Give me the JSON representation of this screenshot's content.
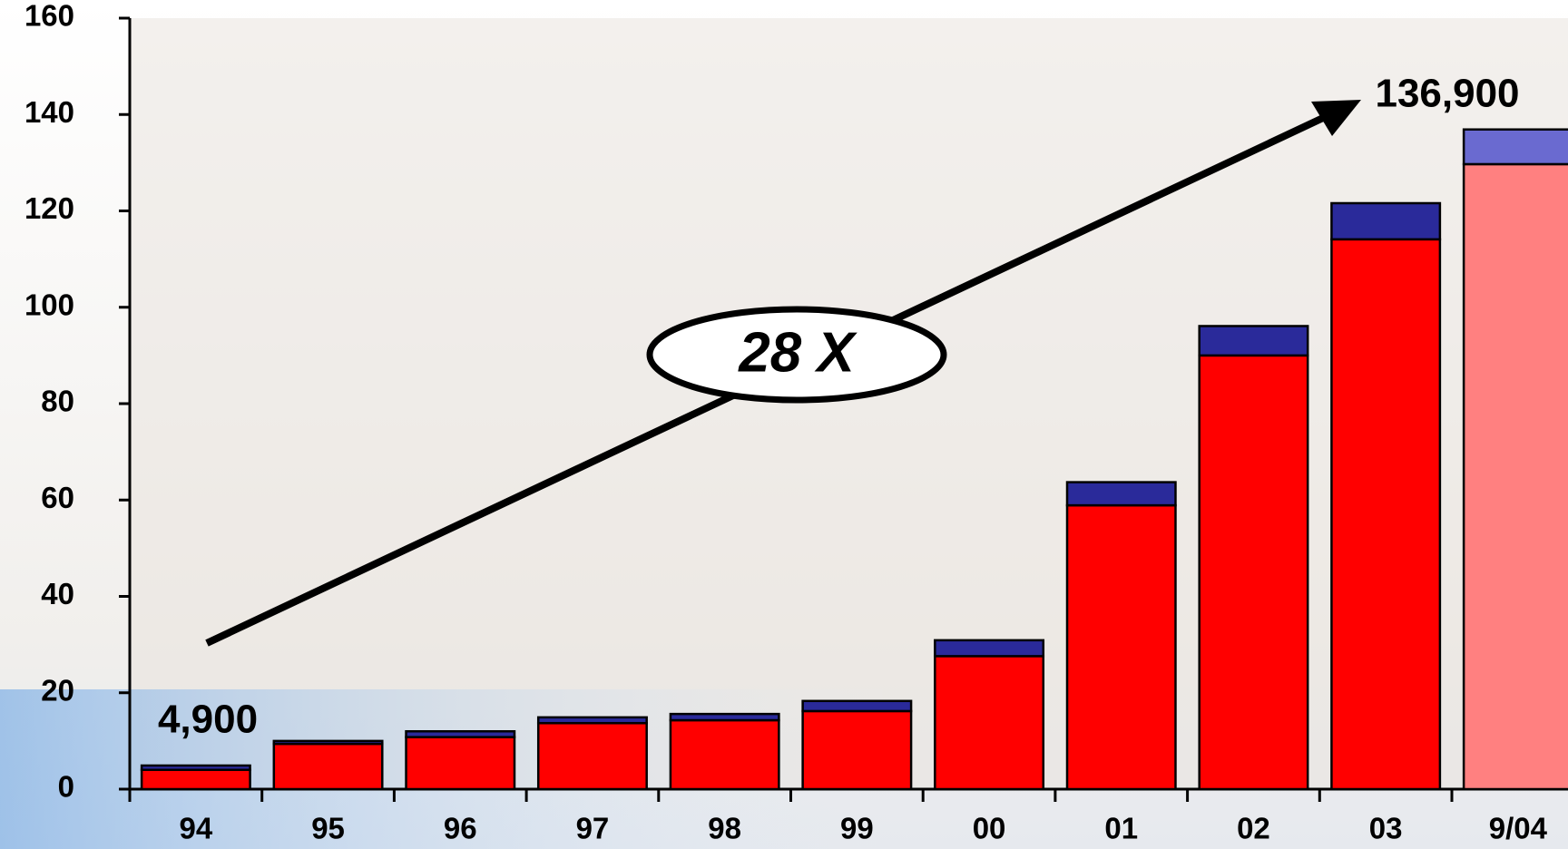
{
  "chart_data": {
    "type": "stacked_bar",
    "categories": [
      "94",
      "95",
      "96",
      "97",
      "98",
      "99",
      "00",
      "01",
      "02",
      "03",
      "9/04"
    ],
    "series": [
      {
        "color": "#ff0000",
        "colors": [
          "#ff0000",
          "#ff0000",
          "#ff0000",
          "#ff0000",
          "#ff0000",
          "#ff0000",
          "#ff0000",
          "#ff0000",
          "#ff0000",
          "#ff0000",
          "#ff8080"
        ],
        "values": [
          4.0,
          9.4,
          10.8,
          13.7,
          14.3,
          16.2,
          27.6,
          58.9,
          90.0,
          114.1,
          129.7
        ]
      },
      {
        "color": "#2a2a9a",
        "colors": [
          "#2a2a9a",
          "#2a2a9a",
          "#2a2a9a",
          "#2a2a9a",
          "#2a2a9a",
          "#2a2a9a",
          "#2a2a9a",
          "#2a2a9a",
          "#2a2a9a",
          "#2a2a9a",
          "#6a6ad0"
        ],
        "values": [
          0.9,
          0.6,
          1.2,
          1.2,
          1.3,
          2.1,
          3.3,
          4.8,
          6.1,
          7.5,
          7.2
        ]
      }
    ],
    "ylim": [
      0,
      160
    ],
    "yticks": [
      0,
      20,
      40,
      60,
      80,
      100,
      120,
      140,
      160
    ],
    "annotations": {
      "start": "4,900",
      "end": "136,900",
      "growth": "28 X"
    }
  }
}
